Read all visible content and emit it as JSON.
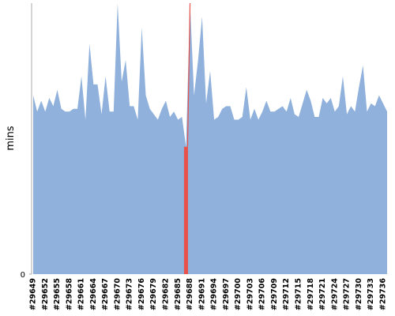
{
  "chart_data": {
    "type": "area",
    "y_label": "mins",
    "categories": [
      "#29649",
      null,
      null,
      "#29652",
      null,
      null,
      "#29655",
      null,
      null,
      "#29658",
      null,
      null,
      "#29661",
      null,
      null,
      "#29664",
      null,
      null,
      "#29667",
      null,
      null,
      "#29670",
      null,
      null,
      "#29673",
      null,
      null,
      "#29676",
      null,
      null,
      "#29679",
      null,
      null,
      "#29682",
      null,
      null,
      "#29685",
      null,
      null,
      "#29688",
      null,
      null,
      "#29691",
      null,
      null,
      "#29694",
      null,
      null,
      "#29697",
      null,
      null,
      "#29700",
      null,
      null,
      "#29703",
      null,
      null,
      "#29706",
      null,
      null,
      "#29709",
      null,
      null,
      "#29712",
      null,
      null,
      "#29715",
      null,
      null,
      "#29718",
      null,
      null,
      "#29721",
      null,
      null,
      "#29724",
      null,
      null,
      "#29727",
      null,
      null,
      "#29730",
      null,
      null,
      "#29733",
      null,
      null,
      "#29736",
      null
    ],
    "values": [
      66,
      60,
      64,
      60,
      65,
      62,
      68,
      61,
      60,
      60,
      61,
      61,
      73,
      57,
      85,
      70,
      70,
      59,
      73,
      60,
      60,
      100,
      71,
      79,
      62,
      62,
      57,
      91,
      66,
      61,
      59,
      57,
      61,
      64,
      58,
      60,
      57,
      58,
      47,
      100,
      66,
      79,
      95,
      63,
      75,
      57,
      58,
      61,
      62,
      62,
      57,
      57,
      58,
      69,
      57,
      61,
      57,
      60,
      64,
      60,
      60,
      61,
      62,
      60,
      65,
      59,
      58,
      63,
      68,
      64,
      58,
      58,
      65,
      63,
      65,
      60,
      62,
      73,
      59,
      62,
      60,
      69,
      77,
      60,
      63,
      62,
      66,
      63,
      60
    ],
    "color": "#8fb1db",
    "highlight_index": 38,
    "highlight_color": "#e8524a",
    "ylim": [
      0,
      100
    ],
    "yticks": [
      0
    ]
  }
}
